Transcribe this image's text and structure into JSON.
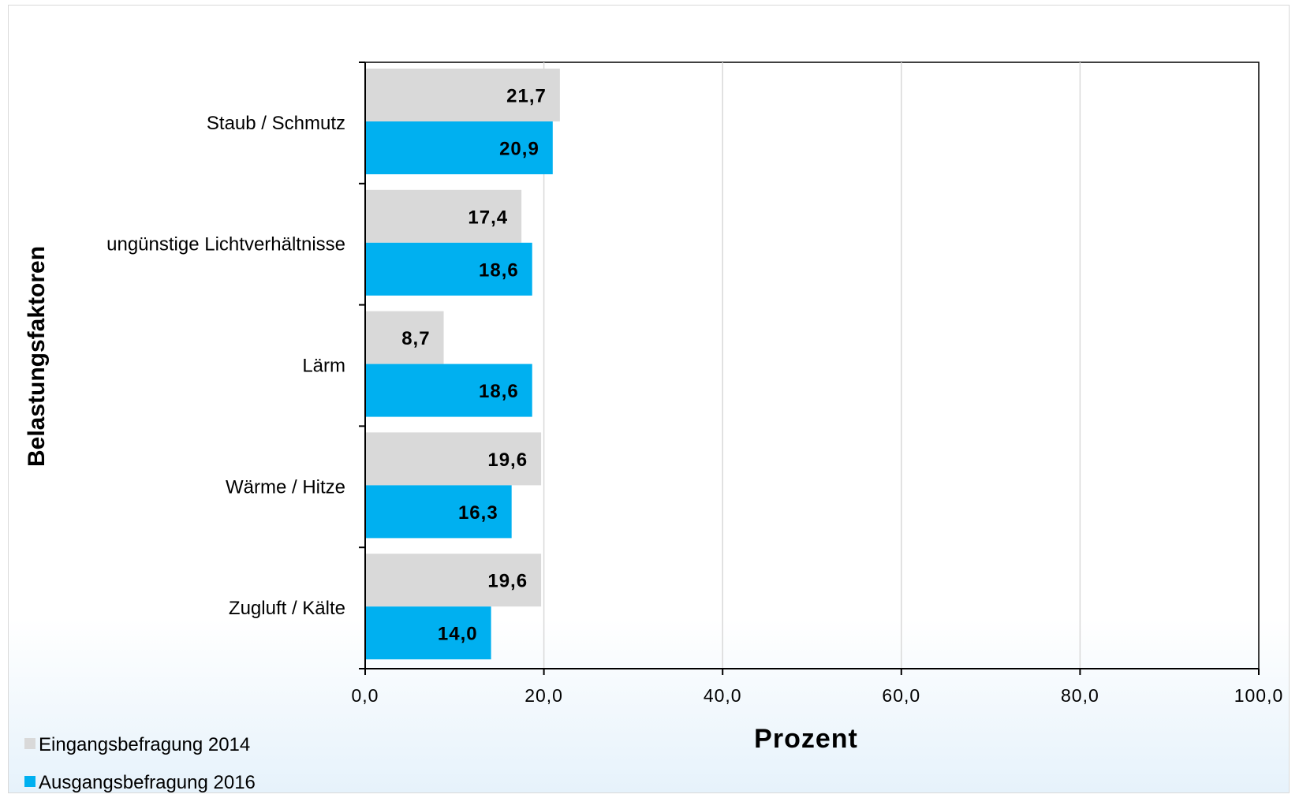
{
  "chart_data": {
    "type": "bar",
    "orientation": "horizontal",
    "categories": [
      "Staub / Schmutz",
      "ungünstige Lichtverhältnisse",
      "Lärm",
      "Wärme / Hitze",
      "Zugluft / Kälte"
    ],
    "series": [
      {
        "name": "Eingangsbefragung 2014",
        "values": [
          21.7,
          17.4,
          8.7,
          19.6,
          19.6
        ],
        "labels": [
          "21,7",
          "17,4",
          "8,7",
          "19,6",
          "19,6"
        ],
        "color": "#d9d9d9"
      },
      {
        "name": "Ausgangsbefragung 2016",
        "values": [
          20.9,
          18.6,
          18.6,
          16.3,
          14.0
        ],
        "labels": [
          "20,9",
          "18,6",
          "18,6",
          "16,3",
          "14,0"
        ],
        "color": "#00b0f0"
      }
    ],
    "xlabel": "Prozent",
    "ylabel": "Belastungsfaktoren",
    "xlim": [
      0,
      100
    ],
    "xticks": [
      0,
      20,
      40,
      60,
      80,
      100
    ],
    "xtick_labels": [
      "0,0",
      "20,0",
      "40,0",
      "60,0",
      "80,0",
      "100,0"
    ],
    "grid": true,
    "legend_position": "bottom-left"
  }
}
